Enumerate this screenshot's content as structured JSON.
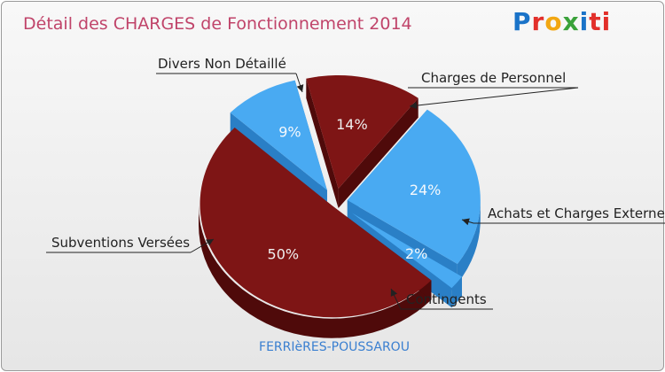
{
  "header": {
    "title": "Détail des CHARGES de Fonctionnement 2014",
    "logo": "Proxiti"
  },
  "footer": {
    "commune": "FERRIèRES-POUSSAROU"
  },
  "chart_data": {
    "type": "pie",
    "title": "Détail des CHARGES de Fonctionnement 2014",
    "subtitle": "FERRIèRES-POUSSAROU",
    "slices": [
      {
        "label": "Charges de Personnel",
        "value": 14,
        "pct_label": "14%",
        "color": "#7e1515",
        "dark": "#4f0a0a"
      },
      {
        "label": "Achats et Charges Externes",
        "value": 24,
        "pct_label": "24%",
        "color": "#49aaf2",
        "dark": "#2a7fc6"
      },
      {
        "label": "Contingents",
        "value": 2,
        "pct_label": "2%",
        "color": "#49aaf2",
        "dark": "#2a7fc6"
      },
      {
        "label": "Subventions Versées",
        "value": 50,
        "pct_label": "50%",
        "color": "#7e1515",
        "dark": "#4f0a0a"
      },
      {
        "label": "Divers Non Détaillé",
        "value": 9,
        "pct_label": "9%",
        "color": "#49aaf2",
        "dark": "#2a7fc6"
      }
    ],
    "legend": "none"
  }
}
